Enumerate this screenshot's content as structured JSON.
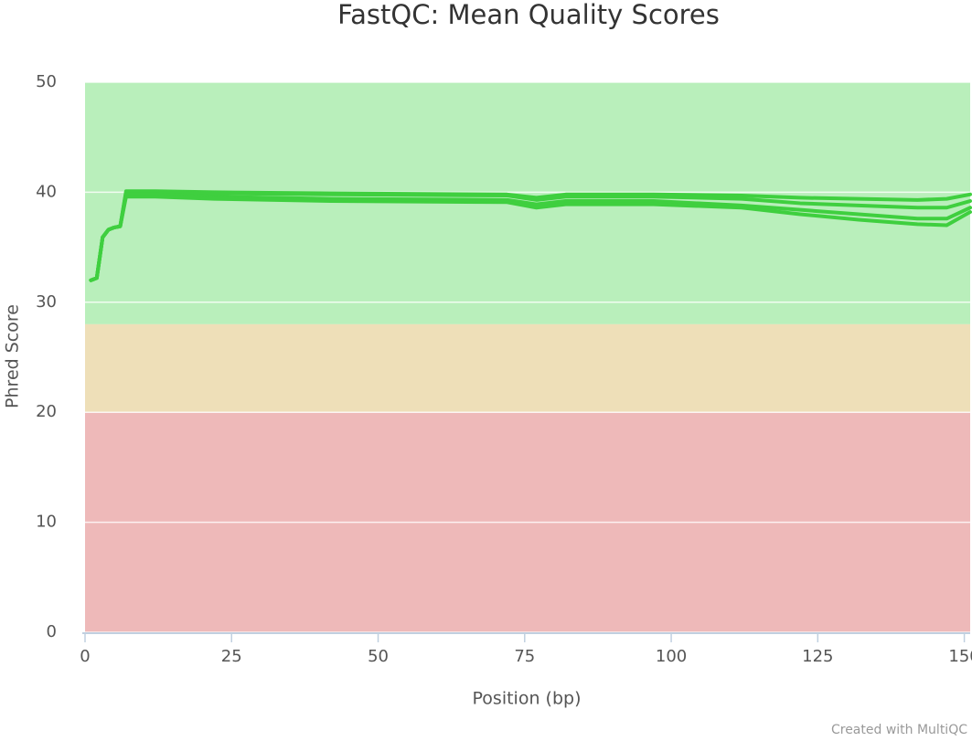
{
  "chart_data": {
    "type": "line",
    "title": "FastQC: Mean Quality Scores",
    "xlabel": "Position (bp)",
    "ylabel": "Phred Score",
    "credit": "Created with MultiQC",
    "x": [
      1,
      2,
      3,
      4,
      5,
      6,
      7,
      12,
      22,
      42,
      72,
      77,
      82,
      97,
      112,
      122,
      132,
      142,
      147,
      151
    ],
    "series": [
      {
        "color": "#3fcf3f",
        "values": [
          32.0,
          32.2,
          35.9,
          36.6,
          36.8,
          36.9,
          40.1,
          40.1,
          40.0,
          39.9,
          39.8,
          39.5,
          39.8,
          39.8,
          39.7,
          39.5,
          39.4,
          39.3,
          39.4,
          39.8
        ]
      },
      {
        "color": "#3fcf3f",
        "values": [
          32.0,
          32.2,
          35.9,
          36.6,
          36.8,
          36.9,
          40.0,
          40.0,
          39.9,
          39.8,
          39.7,
          39.3,
          39.6,
          39.6,
          39.4,
          39.0,
          38.8,
          38.6,
          38.6,
          39.2
        ]
      },
      {
        "color": "#3fcf3f",
        "values": [
          32.0,
          32.2,
          35.9,
          36.6,
          36.8,
          36.9,
          39.8,
          39.8,
          39.6,
          39.4,
          39.3,
          38.9,
          39.2,
          39.2,
          38.8,
          38.4,
          38.0,
          37.6,
          37.6,
          38.6
        ]
      },
      {
        "color": "#3fcf3f",
        "values": [
          32.0,
          32.2,
          35.9,
          36.6,
          36.8,
          36.9,
          39.6,
          39.6,
          39.4,
          39.2,
          39.1,
          38.6,
          38.9,
          38.9,
          38.6,
          38.0,
          37.5,
          37.1,
          37.0,
          38.2
        ]
      }
    ],
    "xlim": [
      0,
      151
    ],
    "ylim": [
      0,
      50
    ],
    "xticks": [
      0,
      25,
      50,
      75,
      100,
      125,
      150
    ],
    "yticks": [
      0,
      10,
      20,
      30,
      40,
      50
    ],
    "bands": [
      {
        "from": 28,
        "to": 50,
        "color": "#b9efbb"
      },
      {
        "from": 20,
        "to": 28,
        "color": "#eedfb8"
      },
      {
        "from": 0,
        "to": 20,
        "color": "#eeb9b9"
      }
    ],
    "grid": true
  }
}
